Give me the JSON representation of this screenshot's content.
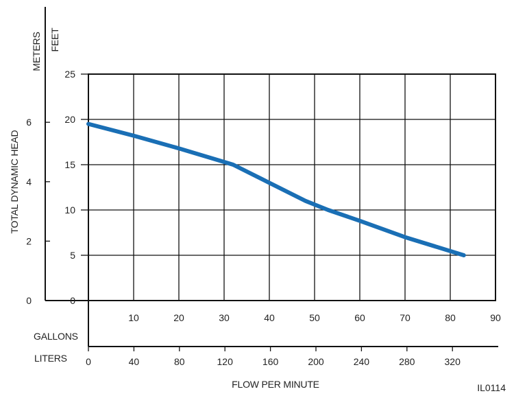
{
  "chart_data": {
    "type": "line",
    "xlabel": "FLOW PER MINUTE",
    "ylabel": "TOTAL DYNAMIC HEAD",
    "x_unit_primary": "GALLONS",
    "x_unit_secondary": "LITERS",
    "y_unit_primary": "FEET",
    "y_unit_secondary": "METERS",
    "xlim": [
      0,
      90
    ],
    "ylim": [
      0,
      25
    ],
    "grid": true,
    "gallons_ticks": [
      "10",
      "20",
      "30",
      "40",
      "50",
      "60",
      "70",
      "80",
      "90"
    ],
    "liters_ticks": [
      "0",
      "40",
      "80",
      "120",
      "160",
      "200",
      "240",
      "280",
      "320"
    ],
    "feet_ticks": [
      "0",
      "5",
      "10",
      "15",
      "20",
      "25"
    ],
    "meters_ticks": [
      "0",
      "2",
      "4",
      "6"
    ],
    "series": [
      {
        "x": [
          0,
          10,
          20,
          30,
          32,
          40,
          48,
          53,
          60,
          70,
          83
        ],
        "y": [
          19.5,
          18.2,
          16.8,
          15.3,
          15.0,
          13.0,
          11.0,
          10.0,
          8.8,
          7.0,
          5.0
        ]
      }
    ],
    "line_color": "#1a6fb5",
    "figure_id": "IL0114"
  }
}
